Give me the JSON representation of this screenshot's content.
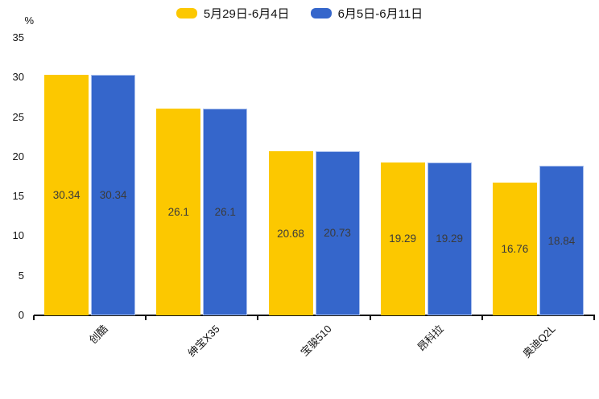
{
  "legend": {
    "items": [
      {
        "label": "5月29日-6月4日",
        "color": "#FCC800"
      },
      {
        "label": "6月5日-6月11日",
        "color": "#3566CB"
      }
    ]
  },
  "chart_data": {
    "type": "bar",
    "title": "",
    "xlabel": "",
    "ylabel": "%",
    "categories": [
      "创酷",
      "绅宝X35",
      "宝骏510",
      "昂科拉",
      "奥迪Q2L"
    ],
    "series": [
      {
        "name": "5月29日-6月4日",
        "color": "#FCC800",
        "values": [
          30.34,
          26.1,
          20.68,
          19.29,
          16.76
        ]
      },
      {
        "name": "6月5日-6月11日",
        "color": "#3566CB",
        "values": [
          30.34,
          26.1,
          20.73,
          19.29,
          18.84
        ]
      }
    ],
    "ylim": [
      0,
      35
    ],
    "yticks": [
      0,
      5,
      10,
      15,
      20,
      25,
      30,
      35
    ],
    "grid": false,
    "legend_position": "top",
    "value_labels": "inside-center"
  }
}
